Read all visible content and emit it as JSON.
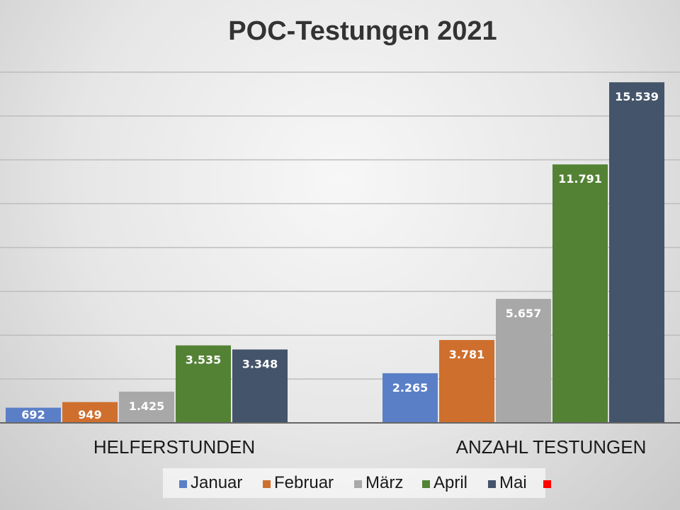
{
  "chart_data": {
    "type": "bar",
    "title": "POC-Testungen 2021",
    "categories": [
      "HELFERSTUNDEN",
      "ANZAHL TESTUNGEN"
    ],
    "series": [
      {
        "name": "Januar",
        "color": "#5b7fc7",
        "values": [
          692,
          2265
        ],
        "labels": [
          "692",
          "2.265"
        ]
      },
      {
        "name": "Februar",
        "color": "#cf6f2e",
        "values": [
          949,
          3781
        ],
        "labels": [
          "949",
          "3.781"
        ]
      },
      {
        "name": "März",
        "color": "#a8a8a8",
        "values": [
          1425,
          5657
        ],
        "labels": [
          "1.425",
          "5.657"
        ]
      },
      {
        "name": "April",
        "color": "#548235",
        "values": [
          3535,
          11791
        ],
        "labels": [
          "3.535",
          "11.791"
        ]
      },
      {
        "name": "Mai",
        "color": "#44546a",
        "values": [
          3348,
          15539
        ],
        "labels": [
          "3.348",
          "15.539"
        ]
      }
    ],
    "legend_extra_marker_color": "#ff0000",
    "ylim": [
      0,
      18000
    ],
    "y_gridline_step": 2000,
    "grid": true,
    "legend": "bottom",
    "xlabel": "",
    "ylabel": ""
  }
}
